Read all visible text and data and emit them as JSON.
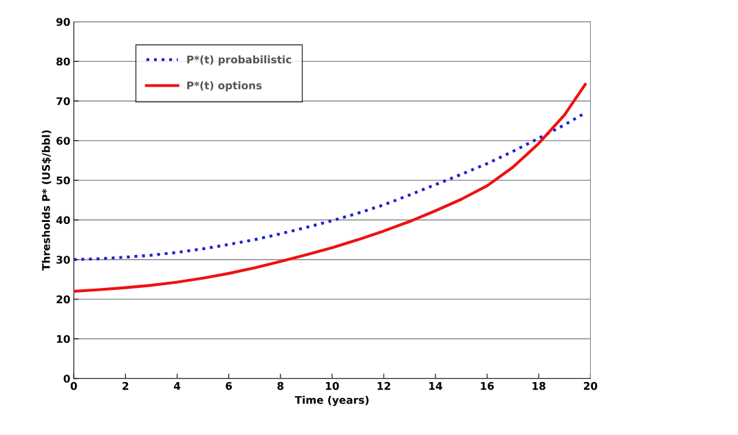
{
  "chart_data": {
    "type": "line",
    "xlabel": "Time (years)",
    "ylabel": "Thresholds P* (US$/bbl)",
    "xlim": [
      0,
      20
    ],
    "xticks": [
      0,
      2,
      4,
      6,
      8,
      10,
      12,
      14,
      16,
      18,
      20
    ],
    "ylim": [
      0,
      90
    ],
    "yticks": [
      0,
      10,
      20,
      30,
      40,
      50,
      60,
      70,
      80,
      90
    ],
    "grid": "y",
    "legend": "top left",
    "marker": "none",
    "series": [
      {
        "name": "P*(t) probabilistic",
        "color": "#1f1fd0",
        "line_style": "dotted",
        "x": [
          0,
          1,
          2,
          3,
          4,
          5,
          6,
          7,
          8,
          9,
          10,
          11,
          12,
          13,
          14,
          15,
          16,
          17,
          18,
          19,
          19.8
        ],
        "values": [
          30,
          30.2,
          30.6,
          31.1,
          31.8,
          32.7,
          33.8,
          35,
          36.5,
          38.1,
          39.8,
          41.7,
          43.8,
          46.3,
          48.9,
          51.5,
          54.2,
          57.3,
          60.6,
          64,
          67
        ]
      },
      {
        "name": "P*(t) options",
        "color": "#ee1111",
        "line_style": "solid",
        "x": [
          0,
          1,
          2,
          3,
          4,
          5,
          6,
          7,
          8,
          9,
          10,
          11,
          12,
          13,
          14,
          15,
          16,
          17,
          18,
          19,
          19.8
        ],
        "values": [
          22,
          22.4,
          22.9,
          23.5,
          24.3,
          25.3,
          26.5,
          27.9,
          29.5,
          31.2,
          33,
          35,
          37.2,
          39.6,
          42.3,
          45.2,
          48.6,
          53.3,
          59.3,
          66.5,
          74.2
        ]
      }
    ]
  }
}
